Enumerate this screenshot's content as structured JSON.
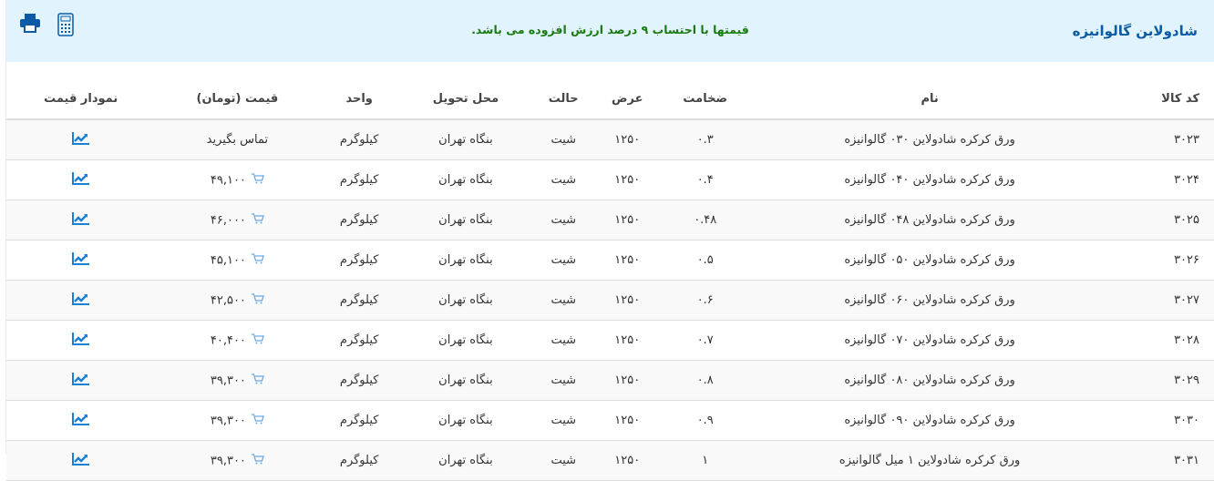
{
  "header": {
    "title": "شادولاین گالوانیزه",
    "note": "قیمتها با احتساب ۹ درصد ارزش افزوده می باشد.",
    "print_icon": "print-icon",
    "calculator_icon": "calculator-icon"
  },
  "table": {
    "columns": [
      "کد کالا",
      "نام",
      "ضخامت",
      "عرض",
      "حالت",
      "محل تحویل",
      "واحد",
      "قیمت (تومان)",
      "نمودار قیمت"
    ],
    "rows": [
      {
        "code": "۳۰۲۳",
        "name": "ورق کرکره شادولاین ۰۳۰ گالوانیزه",
        "thickness": "۰.۳",
        "width": "۱۲۵۰",
        "state": "شیت",
        "delivery": "بنگاه تهران",
        "unit": "کیلوگرم",
        "price": "تماس بگیرید",
        "cart": false
      },
      {
        "code": "۳۰۲۴",
        "name": "ورق کرکره شادولاین ۰۴۰ گالوانیزه",
        "thickness": "۰.۴",
        "width": "۱۲۵۰",
        "state": "شیت",
        "delivery": "بنگاه تهران",
        "unit": "کیلوگرم",
        "price": "۴۹,۱۰۰",
        "cart": true
      },
      {
        "code": "۳۰۲۵",
        "name": "ورق کرکره شادولاین ۰۴۸ گالوانیزه",
        "thickness": "۰.۴۸",
        "width": "۱۲۵۰",
        "state": "شیت",
        "delivery": "بنگاه تهران",
        "unit": "کیلوگرم",
        "price": "۴۶,۰۰۰",
        "cart": true
      },
      {
        "code": "۳۰۲۶",
        "name": "ورق کرکره شادولاین ۰۵۰ گالوانیزه",
        "thickness": "۰.۵",
        "width": "۱۲۵۰",
        "state": "شیت",
        "delivery": "بنگاه تهران",
        "unit": "کیلوگرم",
        "price": "۴۵,۱۰۰",
        "cart": true
      },
      {
        "code": "۳۰۲۷",
        "name": "ورق کرکره شادولاین ۰۶۰ گالوانیزه",
        "thickness": "۰.۶",
        "width": "۱۲۵۰",
        "state": "شیت",
        "delivery": "بنگاه تهران",
        "unit": "کیلوگرم",
        "price": "۴۲,۵۰۰",
        "cart": true
      },
      {
        "code": "۳۰۲۸",
        "name": "ورق کرکره شادولاین ۰۷۰ گالوانیزه",
        "thickness": "۰.۷",
        "width": "۱۲۵۰",
        "state": "شیت",
        "delivery": "بنگاه تهران",
        "unit": "کیلوگرم",
        "price": "۴۰,۴۰۰",
        "cart": true
      },
      {
        "code": "۳۰۲۹",
        "name": "ورق کرکره شادولاین ۰۸۰ گالوانیزه",
        "thickness": "۰.۸",
        "width": "۱۲۵۰",
        "state": "شیت",
        "delivery": "بنگاه تهران",
        "unit": "کیلوگرم",
        "price": "۳۹,۳۰۰",
        "cart": true
      },
      {
        "code": "۳۰۳۰",
        "name": "ورق کرکره شادولاین ۰۹۰ گالوانیزه",
        "thickness": "۰.۹",
        "width": "۱۲۵۰",
        "state": "شیت",
        "delivery": "بنگاه تهران",
        "unit": "کیلوگرم",
        "price": "۳۹,۳۰۰",
        "cart": true
      },
      {
        "code": "۳۰۳۱",
        "name": "ورق کرکره شادولاین ۱ میل گالوانیزه",
        "thickness": "۱",
        "width": "۱۲۵۰",
        "state": "شیت",
        "delivery": "بنگاه تهران",
        "unit": "کیلوگرم",
        "price": "۳۹,۳۰۰",
        "cart": true
      }
    ]
  },
  "colors": {
    "banner": "#e1f4fd",
    "title": "#0b5aa6",
    "note": "#1a7a12",
    "chart_icon": "#1a7fd6"
  }
}
